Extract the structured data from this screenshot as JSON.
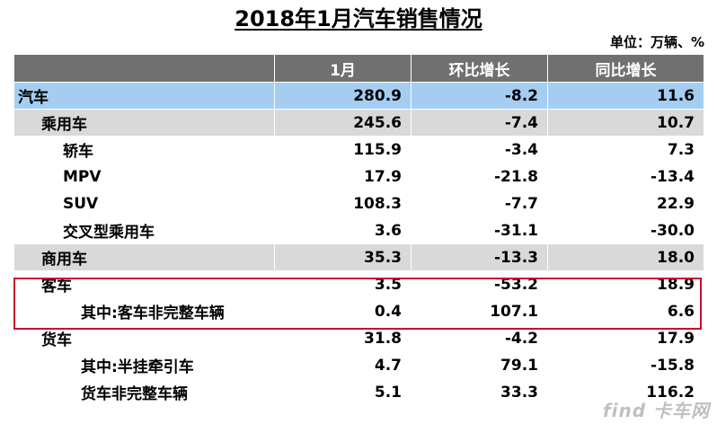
{
  "title": "2018年1月汽车销售情况",
  "unit": "单位：万辆、%",
  "table": {
    "columns": [
      "",
      "1月",
      "环比增长",
      "同比增长"
    ],
    "rows": [
      {
        "name": "汽车",
        "m1": "280.9",
        "mom": "-8.2",
        "yoy": "11.6",
        "level": 0,
        "style": "total"
      },
      {
        "name": "乘用车",
        "m1": "245.6",
        "mom": "-7.4",
        "yoy": "10.7",
        "level": 1,
        "style": "group"
      },
      {
        "name": "轿车",
        "m1": "115.9",
        "mom": "-3.4",
        "yoy": "7.3",
        "level": 2,
        "style": "plain"
      },
      {
        "name": "MPV",
        "m1": "17.9",
        "mom": "-21.8",
        "yoy": "-13.4",
        "level": 2,
        "style": "plain"
      },
      {
        "name": "SUV",
        "m1": "108.3",
        "mom": "-7.7",
        "yoy": "22.9",
        "level": 2,
        "style": "plain"
      },
      {
        "name": "交叉型乘用车",
        "m1": "3.6",
        "mom": "-31.1",
        "yoy": "-30.0",
        "level": 2,
        "style": "plain"
      },
      {
        "name": "商用车",
        "m1": "35.3",
        "mom": "-13.3",
        "yoy": "18.0",
        "level": 1,
        "style": "group"
      },
      {
        "name": "客车",
        "m1": "3.5",
        "mom": "-53.2",
        "yoy": "18.9",
        "level": 1,
        "style": "plain"
      },
      {
        "name": "其中:客车非完整车辆",
        "m1": "0.4",
        "mom": "107.1",
        "yoy": "6.6",
        "level": 3,
        "style": "plain"
      },
      {
        "name": "货车",
        "m1": "31.8",
        "mom": "-4.2",
        "yoy": "17.9",
        "level": 1,
        "style": "plain"
      },
      {
        "name": "其中:半挂牵引车",
        "m1": "4.7",
        "mom": "79.1",
        "yoy": "-15.8",
        "level": 3,
        "style": "plain"
      },
      {
        "name": "货车非完整车辆",
        "m1": "5.1",
        "mom": "33.3",
        "yoy": "116.2",
        "level": 3,
        "style": "plain"
      }
    ]
  },
  "colors": {
    "header_bg": "#707070",
    "total_bg": "#a5cdf2",
    "group_bg": "#d9d9d9",
    "highlight_border": "#c8102e"
  },
  "watermark": "find 卡车网"
}
